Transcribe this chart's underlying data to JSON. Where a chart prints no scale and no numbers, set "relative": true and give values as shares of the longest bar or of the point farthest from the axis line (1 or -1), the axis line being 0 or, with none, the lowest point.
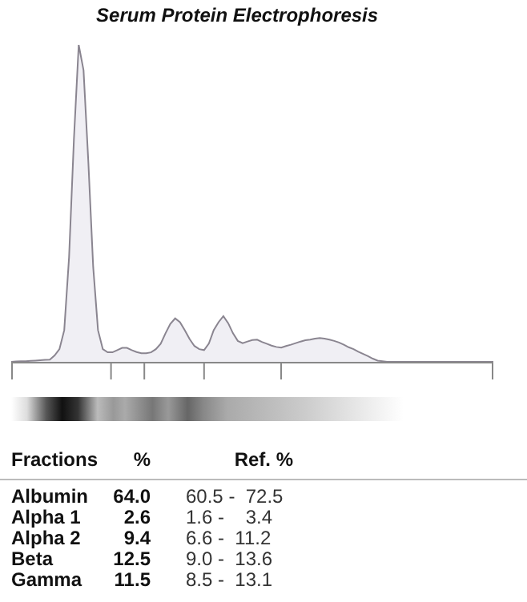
{
  "chart_data": {
    "type": "area",
    "title": "Serum Protein Electrophoresis",
    "relative": true,
    "categories": [
      null,
      null,
      null,
      null,
      null,
      null,
      null,
      null,
      null,
      null,
      null,
      null,
      null,
      null,
      null,
      null,
      null,
      null,
      null,
      null,
      null,
      null,
      null,
      null,
      null,
      null,
      null,
      null,
      null,
      null,
      null,
      null,
      null,
      null,
      null,
      null,
      null,
      null,
      null,
      null,
      null,
      null,
      null,
      null,
      null,
      null,
      null,
      null,
      null,
      null,
      null,
      null,
      null,
      null,
      null,
      null,
      null,
      null,
      null,
      null,
      null,
      null,
      null,
      null,
      null,
      null,
      null,
      null,
      null,
      null,
      null,
      null,
      null,
      null,
      null,
      null,
      null,
      null,
      null,
      null,
      null,
      null,
      null,
      null,
      null,
      null,
      null,
      null,
      null,
      null,
      null,
      null,
      null,
      null,
      null,
      null,
      null,
      null,
      null,
      null,
      null
    ],
    "series": [
      {
        "color": "#8a8590",
        "values": [
          0,
          0.001,
          0.002,
          0.002,
          0.003,
          0.004,
          0.005,
          0.006,
          0.007,
          0.02,
          0.04,
          0.1,
          0.33,
          0.7,
          1,
          0.92,
          0.63,
          0.3,
          0.1,
          0.04,
          0.03,
          0.03,
          0.037,
          0.044,
          0.044,
          0.037,
          0.031,
          0.027,
          0.027,
          0.03,
          0.04,
          0.057,
          0.09,
          0.12,
          0.137,
          0.125,
          0.1,
          0.072,
          0.05,
          0.04,
          0.037,
          0.058,
          0.1,
          0.125,
          0.144,
          0.122,
          0.09,
          0.066,
          0.059,
          0.064,
          0.069,
          0.07,
          0.063,
          0.057,
          0.051,
          0.047,
          0.045,
          0.05,
          0.054,
          0.059,
          0.064,
          0.068,
          0.07,
          0.073,
          0.075,
          0.073,
          0.07,
          0.066,
          0.061,
          0.054,
          0.046,
          0.04,
          0.032,
          0.025,
          0.018,
          0.01,
          0.004,
          0.002,
          0,
          0,
          0,
          0,
          0,
          0,
          0,
          0,
          0,
          0,
          0,
          0,
          0,
          0,
          0,
          0,
          0,
          0,
          0,
          0,
          0,
          0,
          0
        ]
      }
    ],
    "annotations": [
      "Fractions",
      "%",
      "Ref. %",
      "Albumin",
      "64.0",
      "60.5 -  72.5",
      "Alpha 1",
      "2.6",
      "1.6 -    3.4",
      "Alpha 2",
      "9.4",
      "6.6 -  11.2",
      "Beta",
      "12.5",
      "9.0 -  13.6",
      "Gamma",
      "11.5",
      "8.5 -  13.1"
    ]
  }
}
